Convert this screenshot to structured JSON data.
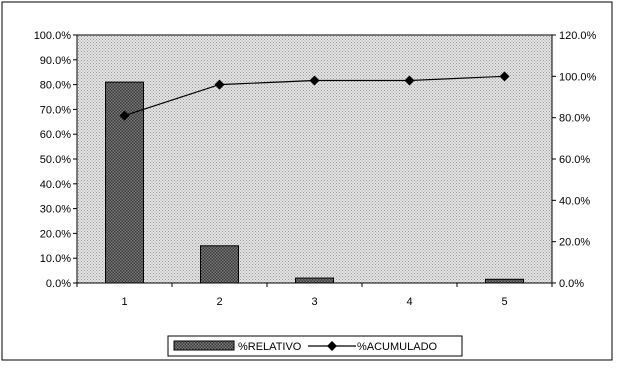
{
  "chart_data": {
    "type": "bar",
    "categories": [
      "1",
      "2",
      "3",
      "4",
      "5"
    ],
    "series": [
      {
        "name": "%RELATIVO",
        "type": "bar",
        "axis": "left",
        "values": [
          0.81,
          0.15,
          0.02,
          0.0,
          0.015
        ]
      },
      {
        "name": "%ACUMULADO",
        "type": "line",
        "axis": "right",
        "values": [
          0.81,
          0.96,
          0.98,
          0.98,
          1.0
        ]
      }
    ],
    "y_left": {
      "ylim": [
        0,
        1.0
      ],
      "ticks": [
        "0.0%",
        "10.0%",
        "20.0%",
        "30.0%",
        "40.0%",
        "50.0%",
        "60.0%",
        "70.0%",
        "80.0%",
        "90.0%",
        "100.0%"
      ]
    },
    "y_right": {
      "ylim": [
        0,
        1.2
      ],
      "ticks": [
        "0.0%",
        "20.0%",
        "40.0%",
        "60.0%",
        "80.0%",
        "100.0%",
        "120.0%"
      ]
    },
    "grid": false,
    "legend_position": "bottom",
    "colors": {
      "bar_fill": "#6e6e6e",
      "line": "#000000",
      "plot_bg": "#d8d8d8"
    }
  },
  "legend": {
    "relativo_label": "%RELATIVO",
    "acumulado_label": "%ACUMULADO"
  }
}
